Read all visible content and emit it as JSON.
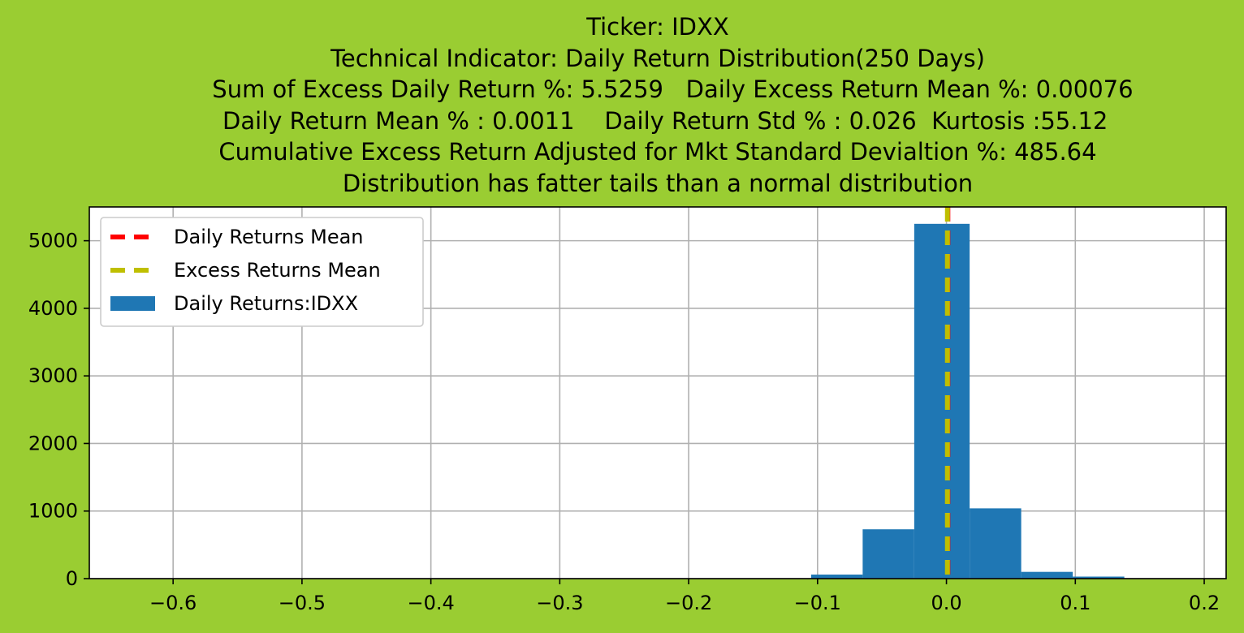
{
  "chart_data": {
    "type": "bar",
    "title_lines": [
      "Ticker: IDXX",
      "Technical Indicator: Daily Return Distribution(250 Days)",
      "    Sum of Excess Daily Return %: 5.5259   Daily Excess Return Mean %: 0.00076",
      "  Daily Return Mean % : 0.0011    Daily Return Std % : 0.026  Kurtosis :55.12",
      "Cumulative Excess Return Adjusted for Mkt Standard Devialtion %: 485.64",
      "Distribution has fatter tails than a normal distribution"
    ],
    "xlim": [
      -0.665,
      0.217
    ],
    "ylim": [
      0,
      5500
    ],
    "x_ticks": [
      -0.6,
      -0.5,
      -0.4,
      -0.3,
      -0.2,
      -0.1,
      0.0,
      0.1,
      0.2
    ],
    "x_tick_labels": [
      "−0.6",
      "−0.5",
      "−0.4",
      "−0.3",
      "−0.2",
      "−0.1",
      "0.0",
      "0.1",
      "0.2"
    ],
    "y_ticks": [
      0,
      1000,
      2000,
      3000,
      4000,
      5000
    ],
    "y_tick_labels": [
      "0",
      "1000",
      "2000",
      "3000",
      "4000",
      "5000"
    ],
    "grid": true,
    "legend_position": "upper-left",
    "bins": [
      {
        "x0": -0.105,
        "x1": -0.065,
        "count": 60
      },
      {
        "x0": -0.065,
        "x1": -0.025,
        "count": 730
      },
      {
        "x0": -0.025,
        "x1": 0.018,
        "count": 5250
      },
      {
        "x0": 0.018,
        "x1": 0.058,
        "count": 1040
      },
      {
        "x0": 0.058,
        "x1": 0.098,
        "count": 100
      },
      {
        "x0": 0.098,
        "x1": 0.138,
        "count": 30
      }
    ],
    "series": [
      {
        "name": "Daily Returns Mean",
        "kind": "vline",
        "x": 0.0011,
        "color": "#ff0000"
      },
      {
        "name": "Excess Returns Mean",
        "kind": "vline",
        "x": 0.00076,
        "color": "#bfbf00"
      },
      {
        "name": "Daily Returns:IDXX",
        "kind": "histogram",
        "color": "#1f77b4"
      }
    ]
  }
}
